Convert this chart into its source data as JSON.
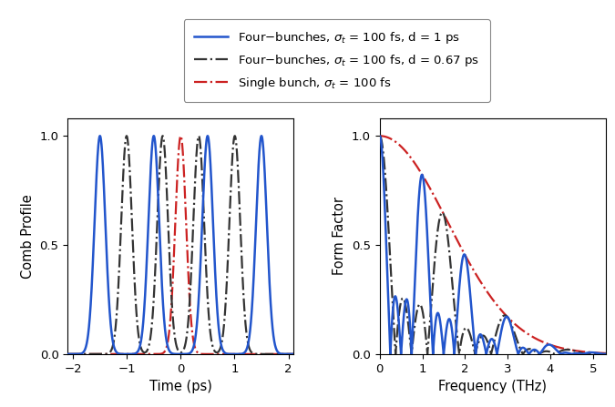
{
  "sigma_t_ps": 0.1,
  "d1_ps": 1.0,
  "d2_ps": 0.67,
  "n_bunches": 4,
  "time_xlim": [
    -2.1,
    2.1
  ],
  "freq_xlim": [
    0,
    5.3
  ],
  "ylim": [
    0,
    1.08
  ],
  "color_blue": "#2255cc",
  "color_black": "#333333",
  "color_red": "#cc2222",
  "lw_blue": 1.8,
  "lw_black": 1.6,
  "lw_red": 1.6,
  "xlabel_left": "Time (ps)",
  "ylabel_left": "Comb Profile",
  "xlabel_right": "Frequency (THz)",
  "ylabel_right": "Form Factor",
  "xticks_left": [
    -2,
    -1,
    0,
    1,
    2
  ],
  "yticks_left": [
    0,
    0.5,
    1
  ],
  "xticks_right": [
    0,
    1,
    2,
    3,
    4,
    5
  ],
  "yticks_right": [
    0,
    0.5,
    1
  ],
  "figsize": [
    6.75,
    4.47
  ],
  "dpi": 100
}
